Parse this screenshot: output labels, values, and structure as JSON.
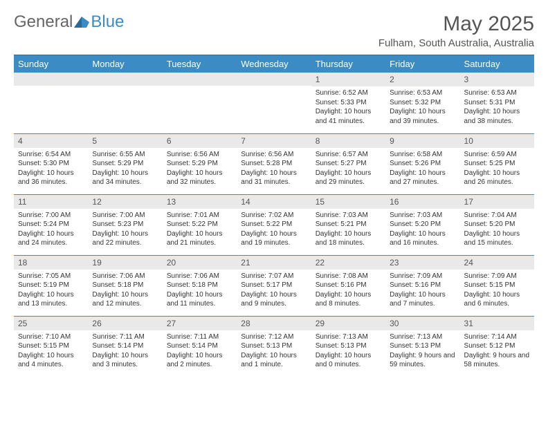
{
  "brand": {
    "general": "General",
    "blue": "Blue"
  },
  "title": "May 2025",
  "location": "Fulham, South Australia, Australia",
  "colors": {
    "header_bg": "#3b8bc4",
    "header_text": "#ffffff",
    "daynum_bg": "#e9e9e9",
    "cell_border": "#3b8bc4",
    "logo_general": "#666666",
    "logo_blue": "#3b8bc4",
    "title_color": "#555555"
  },
  "day_headers": [
    "Sunday",
    "Monday",
    "Tuesday",
    "Wednesday",
    "Thursday",
    "Friday",
    "Saturday"
  ],
  "weeks": [
    [
      {
        "n": "",
        "sr": "",
        "ss": "",
        "dl": ""
      },
      {
        "n": "",
        "sr": "",
        "ss": "",
        "dl": ""
      },
      {
        "n": "",
        "sr": "",
        "ss": "",
        "dl": ""
      },
      {
        "n": "",
        "sr": "",
        "ss": "",
        "dl": ""
      },
      {
        "n": "1",
        "sr": "Sunrise: 6:52 AM",
        "ss": "Sunset: 5:33 PM",
        "dl": "Daylight: 10 hours and 41 minutes."
      },
      {
        "n": "2",
        "sr": "Sunrise: 6:53 AM",
        "ss": "Sunset: 5:32 PM",
        "dl": "Daylight: 10 hours and 39 minutes."
      },
      {
        "n": "3",
        "sr": "Sunrise: 6:53 AM",
        "ss": "Sunset: 5:31 PM",
        "dl": "Daylight: 10 hours and 38 minutes."
      }
    ],
    [
      {
        "n": "4",
        "sr": "Sunrise: 6:54 AM",
        "ss": "Sunset: 5:30 PM",
        "dl": "Daylight: 10 hours and 36 minutes."
      },
      {
        "n": "5",
        "sr": "Sunrise: 6:55 AM",
        "ss": "Sunset: 5:29 PM",
        "dl": "Daylight: 10 hours and 34 minutes."
      },
      {
        "n": "6",
        "sr": "Sunrise: 6:56 AM",
        "ss": "Sunset: 5:29 PM",
        "dl": "Daylight: 10 hours and 32 minutes."
      },
      {
        "n": "7",
        "sr": "Sunrise: 6:56 AM",
        "ss": "Sunset: 5:28 PM",
        "dl": "Daylight: 10 hours and 31 minutes."
      },
      {
        "n": "8",
        "sr": "Sunrise: 6:57 AM",
        "ss": "Sunset: 5:27 PM",
        "dl": "Daylight: 10 hours and 29 minutes."
      },
      {
        "n": "9",
        "sr": "Sunrise: 6:58 AM",
        "ss": "Sunset: 5:26 PM",
        "dl": "Daylight: 10 hours and 27 minutes."
      },
      {
        "n": "10",
        "sr": "Sunrise: 6:59 AM",
        "ss": "Sunset: 5:25 PM",
        "dl": "Daylight: 10 hours and 26 minutes."
      }
    ],
    [
      {
        "n": "11",
        "sr": "Sunrise: 7:00 AM",
        "ss": "Sunset: 5:24 PM",
        "dl": "Daylight: 10 hours and 24 minutes."
      },
      {
        "n": "12",
        "sr": "Sunrise: 7:00 AM",
        "ss": "Sunset: 5:23 PM",
        "dl": "Daylight: 10 hours and 22 minutes."
      },
      {
        "n": "13",
        "sr": "Sunrise: 7:01 AM",
        "ss": "Sunset: 5:22 PM",
        "dl": "Daylight: 10 hours and 21 minutes."
      },
      {
        "n": "14",
        "sr": "Sunrise: 7:02 AM",
        "ss": "Sunset: 5:22 PM",
        "dl": "Daylight: 10 hours and 19 minutes."
      },
      {
        "n": "15",
        "sr": "Sunrise: 7:03 AM",
        "ss": "Sunset: 5:21 PM",
        "dl": "Daylight: 10 hours and 18 minutes."
      },
      {
        "n": "16",
        "sr": "Sunrise: 7:03 AM",
        "ss": "Sunset: 5:20 PM",
        "dl": "Daylight: 10 hours and 16 minutes."
      },
      {
        "n": "17",
        "sr": "Sunrise: 7:04 AM",
        "ss": "Sunset: 5:20 PM",
        "dl": "Daylight: 10 hours and 15 minutes."
      }
    ],
    [
      {
        "n": "18",
        "sr": "Sunrise: 7:05 AM",
        "ss": "Sunset: 5:19 PM",
        "dl": "Daylight: 10 hours and 13 minutes."
      },
      {
        "n": "19",
        "sr": "Sunrise: 7:06 AM",
        "ss": "Sunset: 5:18 PM",
        "dl": "Daylight: 10 hours and 12 minutes."
      },
      {
        "n": "20",
        "sr": "Sunrise: 7:06 AM",
        "ss": "Sunset: 5:18 PM",
        "dl": "Daylight: 10 hours and 11 minutes."
      },
      {
        "n": "21",
        "sr": "Sunrise: 7:07 AM",
        "ss": "Sunset: 5:17 PM",
        "dl": "Daylight: 10 hours and 9 minutes."
      },
      {
        "n": "22",
        "sr": "Sunrise: 7:08 AM",
        "ss": "Sunset: 5:16 PM",
        "dl": "Daylight: 10 hours and 8 minutes."
      },
      {
        "n": "23",
        "sr": "Sunrise: 7:09 AM",
        "ss": "Sunset: 5:16 PM",
        "dl": "Daylight: 10 hours and 7 minutes."
      },
      {
        "n": "24",
        "sr": "Sunrise: 7:09 AM",
        "ss": "Sunset: 5:15 PM",
        "dl": "Daylight: 10 hours and 6 minutes."
      }
    ],
    [
      {
        "n": "25",
        "sr": "Sunrise: 7:10 AM",
        "ss": "Sunset: 5:15 PM",
        "dl": "Daylight: 10 hours and 4 minutes."
      },
      {
        "n": "26",
        "sr": "Sunrise: 7:11 AM",
        "ss": "Sunset: 5:14 PM",
        "dl": "Daylight: 10 hours and 3 minutes."
      },
      {
        "n": "27",
        "sr": "Sunrise: 7:11 AM",
        "ss": "Sunset: 5:14 PM",
        "dl": "Daylight: 10 hours and 2 minutes."
      },
      {
        "n": "28",
        "sr": "Sunrise: 7:12 AM",
        "ss": "Sunset: 5:13 PM",
        "dl": "Daylight: 10 hours and 1 minute."
      },
      {
        "n": "29",
        "sr": "Sunrise: 7:13 AM",
        "ss": "Sunset: 5:13 PM",
        "dl": "Daylight: 10 hours and 0 minutes."
      },
      {
        "n": "30",
        "sr": "Sunrise: 7:13 AM",
        "ss": "Sunset: 5:13 PM",
        "dl": "Daylight: 9 hours and 59 minutes."
      },
      {
        "n": "31",
        "sr": "Sunrise: 7:14 AM",
        "ss": "Sunset: 5:12 PM",
        "dl": "Daylight: 9 hours and 58 minutes."
      }
    ]
  ]
}
